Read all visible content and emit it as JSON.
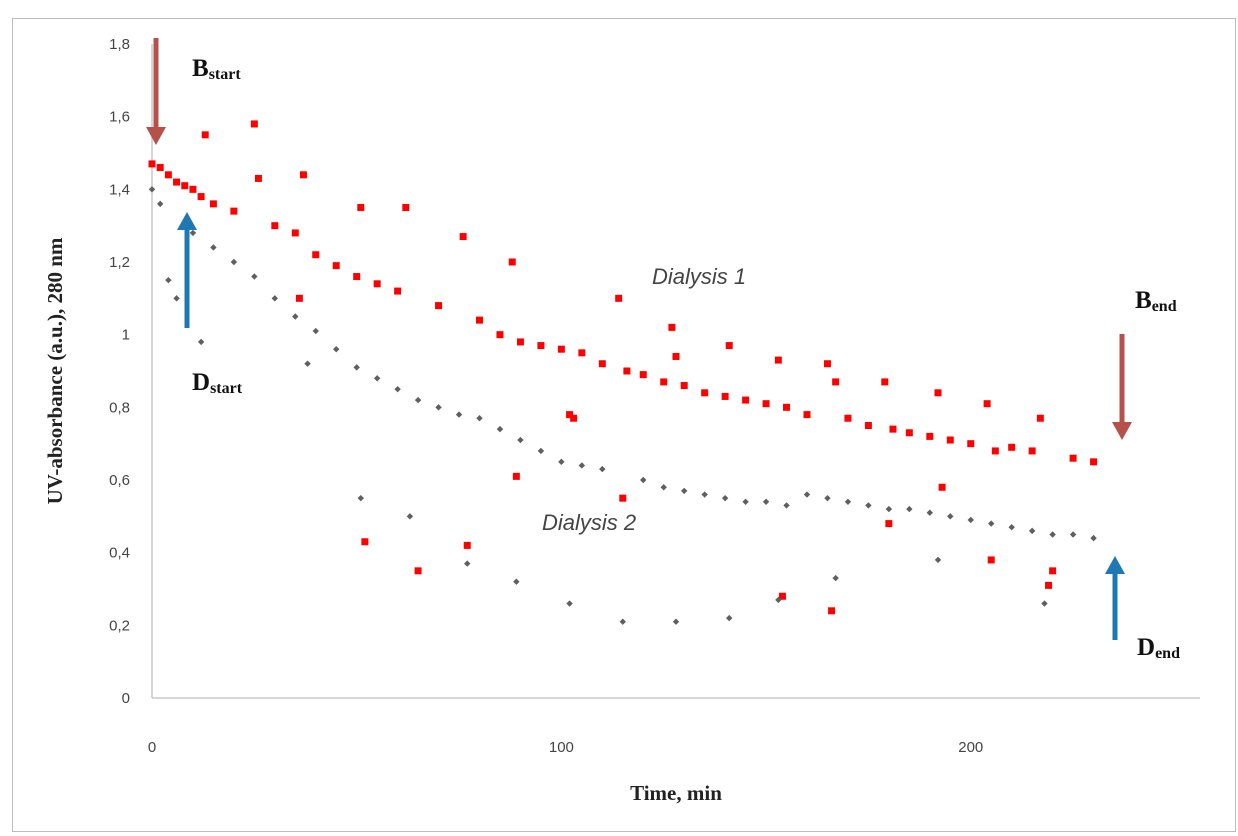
{
  "chart_data": {
    "type": "scatter",
    "xlabel": "Time, min",
    "ylabel": "UV-absorbance (a.u.), 280 nm",
    "xlim": [
      0,
      256
    ],
    "ylim": [
      0,
      1.8
    ],
    "x_ticks": [
      "0",
      "100",
      "200"
    ],
    "y_ticks": [
      "0",
      "0,2",
      "0,4",
      "0,6",
      "0,8",
      "1",
      "1,2",
      "1,4",
      "1,6",
      "1,8"
    ],
    "grid": false,
    "legend": "none",
    "annotations": [
      {
        "main": "B",
        "sub": "start",
        "color": "#b5514a",
        "at": [
          1,
          1.47
        ]
      },
      {
        "main": "D",
        "sub": "start",
        "color": "#1f77b4",
        "at": [
          9,
          1.3
        ]
      },
      {
        "main": "B",
        "sub": "end",
        "color": "#b5514a",
        "at": [
          230,
          0.66
        ]
      },
      {
        "main": "D",
        "sub": "end",
        "color": "#1f77b4",
        "at": [
          230,
          0.47
        ]
      }
    ],
    "series": [
      {
        "name": "Dialysis 1",
        "color": "#ff0000",
        "x": [
          0,
          2,
          4,
          6,
          8,
          10,
          12,
          13,
          15,
          20,
          25,
          26,
          30,
          35,
          36,
          37,
          40,
          45,
          50,
          51,
          52,
          55,
          60,
          62,
          65,
          70,
          76,
          77,
          80,
          85,
          88,
          89,
          90,
          95,
          100,
          102,
          103,
          105,
          110,
          114,
          115,
          116,
          120,
          125,
          127,
          128,
          130,
          135,
          140,
          141,
          145,
          150,
          153,
          154,
          155,
          160,
          165,
          166,
          167,
          170,
          175,
          179,
          180,
          181,
          185,
          190,
          192,
          193,
          195,
          200,
          204,
          205,
          206,
          210,
          215,
          217,
          219,
          220,
          225,
          230
        ],
        "y": [
          1.47,
          1.46,
          1.44,
          1.42,
          1.41,
          1.4,
          1.38,
          1.55,
          1.36,
          1.34,
          1.58,
          1.43,
          1.3,
          1.28,
          1.1,
          1.44,
          1.22,
          1.19,
          1.16,
          1.35,
          0.43,
          1.14,
          1.12,
          1.35,
          0.35,
          1.08,
          1.27,
          0.42,
          1.04,
          1.0,
          1.2,
          0.61,
          0.98,
          0.97,
          0.96,
          0.78,
          0.77,
          0.95,
          0.92,
          1.1,
          0.55,
          0.9,
          0.89,
          0.87,
          1.02,
          0.94,
          0.86,
          0.84,
          0.83,
          0.97,
          0.82,
          0.81,
          0.93,
          0.28,
          0.8,
          0.78,
          0.92,
          0.24,
          0.87,
          0.77,
          0.75,
          0.87,
          0.48,
          0.74,
          0.73,
          0.72,
          0.84,
          0.58,
          0.71,
          0.7,
          0.81,
          0.38,
          0.68,
          0.69,
          0.68,
          0.77,
          0.31,
          0.35,
          0.66,
          0.65
        ]
      },
      {
        "name": "Dialysis 2",
        "color": "#5f5f5f",
        "x": [
          0,
          2,
          4,
          6,
          8,
          10,
          12,
          15,
          20,
          25,
          30,
          35,
          38,
          40,
          45,
          50,
          51,
          55,
          60,
          63,
          65,
          70,
          75,
          77,
          80,
          85,
          89,
          90,
          95,
          100,
          102,
          105,
          110,
          115,
          120,
          125,
          128,
          130,
          135,
          140,
          141,
          145,
          150,
          153,
          155,
          160,
          165,
          167,
          170,
          175,
          180,
          185,
          190,
          192,
          195,
          200,
          205,
          210,
          215,
          218,
          220,
          225,
          230
        ],
        "y": [
          1.4,
          1.36,
          1.15,
          1.1,
          1.31,
          1.28,
          0.98,
          1.24,
          1.2,
          1.16,
          1.1,
          1.05,
          0.92,
          1.01,
          0.96,
          0.91,
          0.55,
          0.88,
          0.85,
          0.5,
          0.82,
          0.8,
          0.78,
          0.37,
          0.77,
          0.74,
          0.32,
          0.71,
          0.68,
          0.65,
          0.26,
          0.64,
          0.63,
          0.21,
          0.6,
          0.58,
          0.21,
          0.57,
          0.56,
          0.55,
          0.22,
          0.54,
          0.54,
          0.27,
          0.53,
          0.56,
          0.55,
          0.33,
          0.54,
          0.53,
          0.52,
          0.52,
          0.51,
          0.38,
          0.5,
          0.49,
          0.48,
          0.47,
          0.46,
          0.26,
          0.45,
          0.45,
          0.44
        ]
      }
    ]
  }
}
